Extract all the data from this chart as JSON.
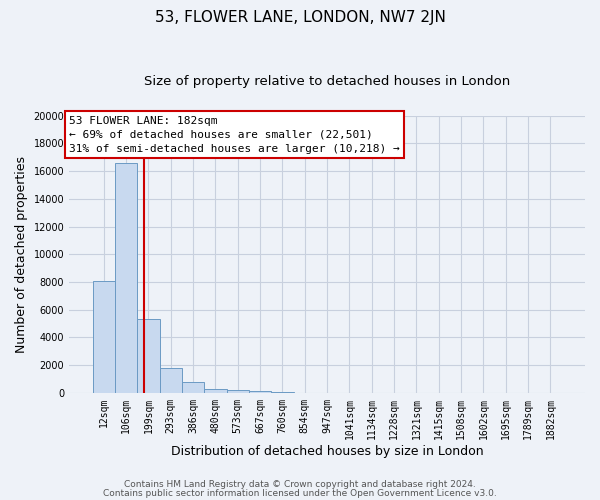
{
  "title": "53, FLOWER LANE, LONDON, NW7 2JN",
  "subtitle": "Size of property relative to detached houses in London",
  "xlabel": "Distribution of detached houses by size in London",
  "ylabel": "Number of detached properties",
  "bar_labels": [
    "12sqm",
    "106sqm",
    "199sqm",
    "293sqm",
    "386sqm",
    "480sqm",
    "573sqm",
    "667sqm",
    "760sqm",
    "854sqm",
    "947sqm",
    "1041sqm",
    "1134sqm",
    "1228sqm",
    "1321sqm",
    "1415sqm",
    "1508sqm",
    "1602sqm",
    "1695sqm",
    "1789sqm",
    "1882sqm"
  ],
  "bar_heights": [
    8100,
    16600,
    5300,
    1800,
    800,
    270,
    200,
    110,
    70,
    0,
    0,
    0,
    0,
    0,
    0,
    0,
    0,
    0,
    0,
    0,
    0
  ],
  "bar_color": "#c8d9ef",
  "bar_edge_color": "#6b9ac4",
  "ylim": [
    0,
    20000
  ],
  "yticks": [
    0,
    2000,
    4000,
    6000,
    8000,
    10000,
    12000,
    14000,
    16000,
    18000,
    20000
  ],
  "annotation_box_title": "53 FLOWER LANE: 182sqm",
  "annotation_line1": "← 69% of detached houses are smaller (22,501)",
  "annotation_line2": "31% of semi-detached houses are larger (10,218) →",
  "vline_color": "#cc0000",
  "box_edge_color": "#cc0000",
  "footer_line1": "Contains HM Land Registry data © Crown copyright and database right 2024.",
  "footer_line2": "Contains public sector information licensed under the Open Government Licence v3.0.",
  "background_color": "#eef2f8",
  "grid_color": "#c8d0de",
  "title_fontsize": 11,
  "subtitle_fontsize": 9.5,
  "axis_label_fontsize": 9,
  "tick_fontsize": 7,
  "annotation_fontsize": 8,
  "footer_fontsize": 6.5
}
